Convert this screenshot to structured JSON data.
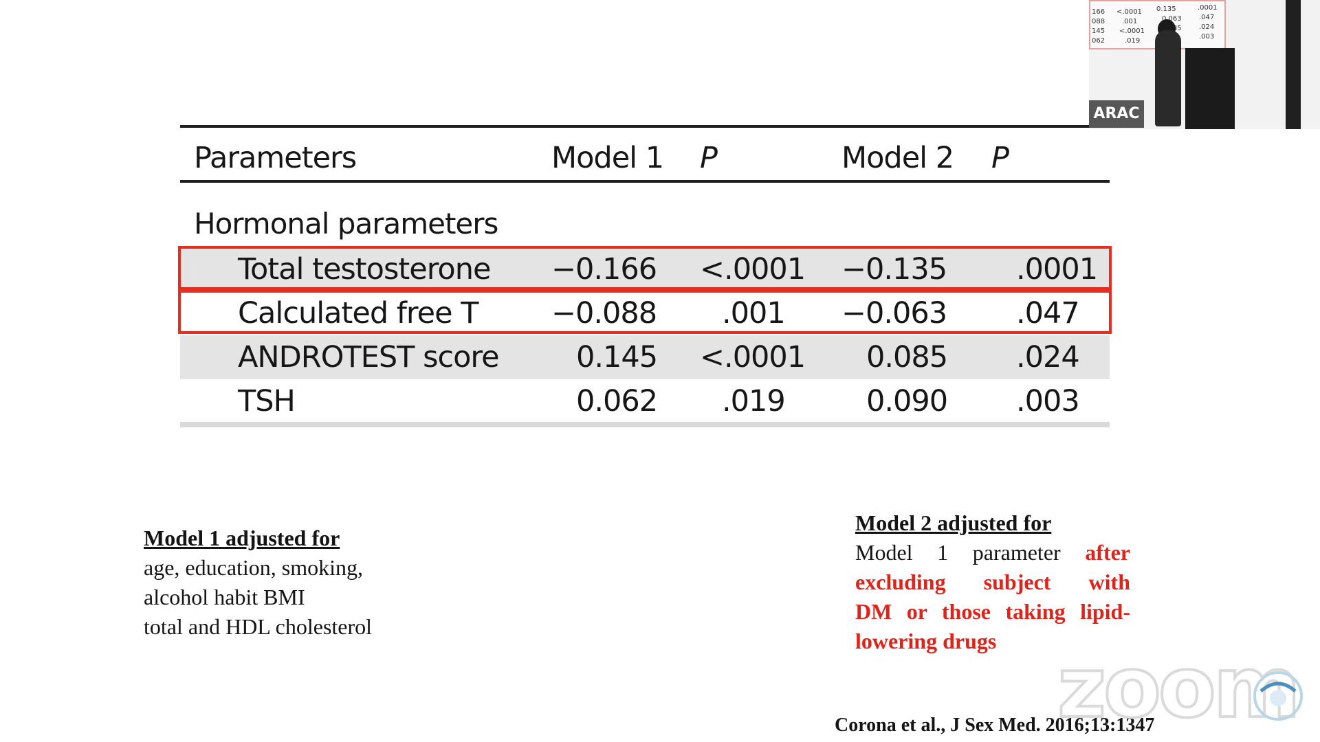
{
  "table": {
    "headers": {
      "parameters": "Parameters",
      "model1": "Model 1",
      "p1": "P",
      "model2": "Model 2",
      "p2": "P"
    },
    "section": "Hormonal parameters",
    "rows": [
      {
        "name": "Total testosterone",
        "model1": "−0.166",
        "p1": "<.0001",
        "model2": "−0.135",
        "p2": ".0001",
        "highlighted": true,
        "shaded": true
      },
      {
        "name": "Calculated free T",
        "model1": "−0.088",
        "p1": ".001",
        "model2": "−0.063",
        "p2": ".047",
        "highlighted": true,
        "shaded": false
      },
      {
        "name": "ANDROTEST score",
        "model1": "0.145",
        "p1": "<.0001",
        "model2": "0.085",
        "p2": ".024",
        "highlighted": false,
        "shaded": true
      },
      {
        "name": "TSH",
        "model1": "0.062",
        "p1": ".019",
        "model2": "0.090",
        "p2": ".003",
        "highlighted": false,
        "shaded": false
      }
    ]
  },
  "notes": {
    "model1": {
      "title": "Model 1 adjusted for",
      "lines": [
        "age, education, smoking,",
        "alcohol habit BMI",
        "total and HDL cholesterol"
      ]
    },
    "model2": {
      "title": "Model 2 adjusted for",
      "line1_plain": "Model 1 parameter",
      "line1_red": "after",
      "line2": "excluding subject with",
      "line3": "DM or those taking lipid-",
      "line4": "lowering drugs"
    }
  },
  "citation": "Corona et al., J Sex Med. 2016;13:1347",
  "video": {
    "label": "ARAC",
    "mini_table": [
      [
        "166",
        "<.0001",
        "0.135",
        ".0001"
      ],
      [
        "088",
        ".001",
        "0.063",
        ".047"
      ],
      [
        "145",
        "<.0001",
        "0.085",
        ".024"
      ],
      [
        "062",
        ".019",
        "",
        ".003"
      ]
    ]
  },
  "watermark": "zoom",
  "colors": {
    "highlight": "#e52d22",
    "note_red": "#e0231a",
    "shaded_row": "#e4e4e4"
  }
}
